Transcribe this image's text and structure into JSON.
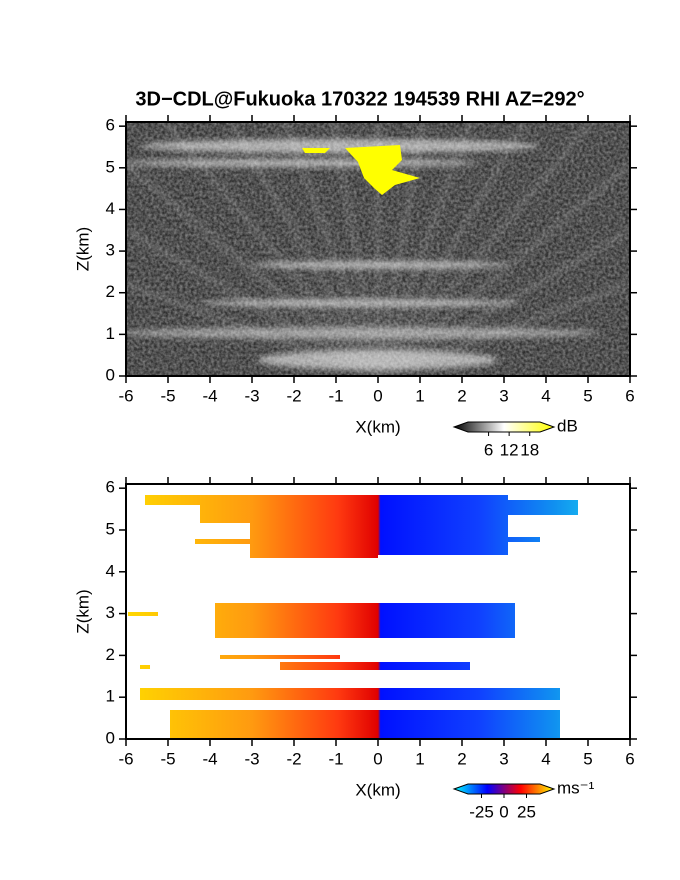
{
  "chart_data": [
    {
      "type": "rhi",
      "title": "3D−CDL@Fukuoka 170322 194539 RHI AZ=292°",
      "xlabel": "X(km)",
      "ylabel": "Z(km)",
      "xlim": [
        -6,
        6
      ],
      "ylim": [
        0,
        6.1
      ],
      "xticks": [
        -6,
        -5,
        -4,
        -3,
        -2,
        -1,
        0,
        1,
        2,
        3,
        4,
        5,
        6
      ],
      "yticks": [
        0,
        1,
        2,
        3,
        4,
        5,
        6
      ],
      "colorbar": {
        "label": "dB",
        "lim": [
          0,
          21
        ],
        "ticks": [
          6,
          12,
          18
        ],
        "colors": [
          "#000000",
          "#ffffff",
          "#ffff00"
        ]
      }
    },
    {
      "type": "rhi",
      "xlabel": "X(km)",
      "ylabel": "Z(km)",
      "xlim": [
        -6,
        6
      ],
      "ylim": [
        0,
        6.1
      ],
      "xticks": [
        -6,
        -5,
        -4,
        -3,
        -2,
        -1,
        0,
        1,
        2,
        3,
        4,
        5,
        6
      ],
      "yticks": [
        0,
        1,
        2,
        3,
        4,
        5,
        6
      ],
      "colorbar": {
        "label": "ms⁻¹",
        "lim": [
          -40,
          40
        ],
        "ticks": [
          -25,
          0,
          25
        ],
        "colors": [
          "#00ffff",
          "#0000ff",
          "#ff0000",
          "#ffff00"
        ]
      }
    }
  ]
}
